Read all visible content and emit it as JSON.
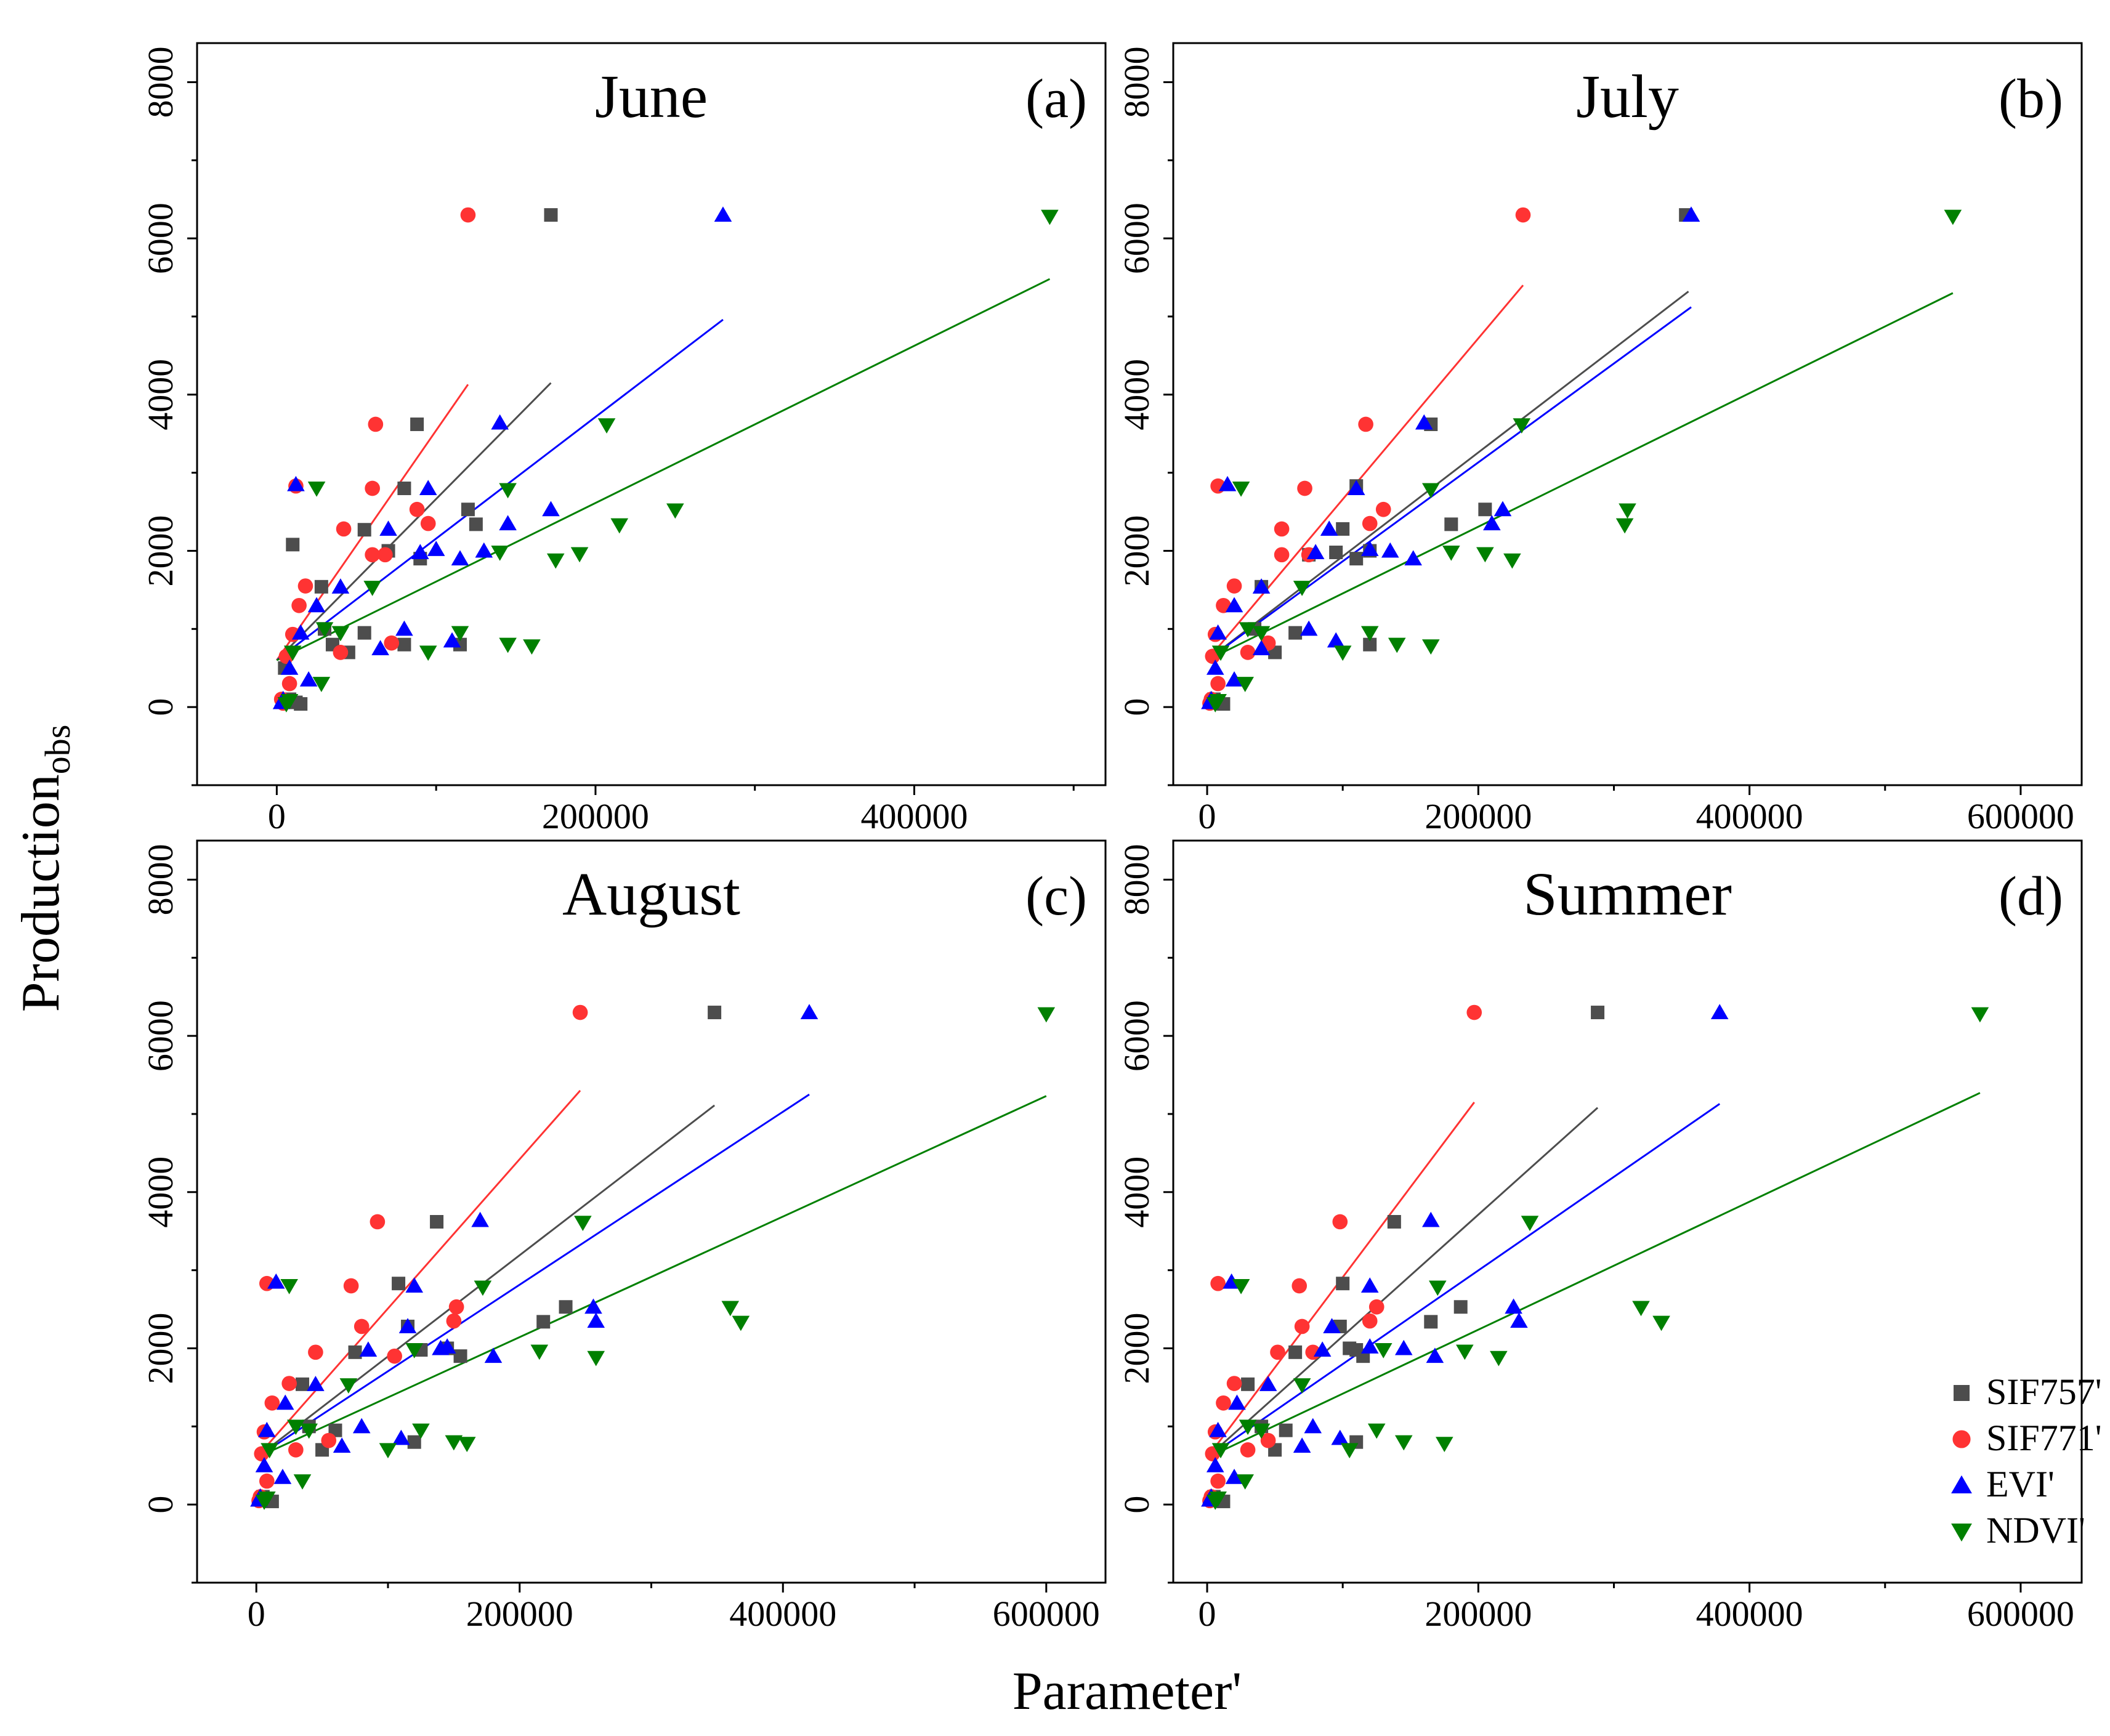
{
  "figure": {
    "xlabel": "Parameter'",
    "ylabel_main": "Production",
    "ylabel_sub": "obs"
  },
  "legend": [
    {
      "label": "SIF757'",
      "marker": "square",
      "color": "#4d4d4d"
    },
    {
      "label": "SIF771'",
      "marker": "circle",
      "color": "#ff3333"
    },
    {
      "label": "EVI'",
      "marker": "triangle-up",
      "color": "#0000ff"
    },
    {
      "label": "NDVI'",
      "marker": "triangle-down",
      "color": "#008000"
    }
  ],
  "chart_data": [
    {
      "type": "scatter",
      "title": "June",
      "panel_label": "(a)",
      "xlim": [
        -50000,
        520000
      ],
      "ylim": [
        -1000,
        8500
      ],
      "xticks": [
        0,
        200000,
        400000
      ],
      "yticks": [
        0,
        2000,
        4000,
        6000,
        8000
      ],
      "series": [
        {
          "name": "SIF757'",
          "marker": "square",
          "color": "#4d4d4d",
          "x": [
            172000,
            88000,
            120000,
            10000,
            80000,
            125000,
            28000,
            55000,
            70000,
            90000,
            30000,
            35000,
            55000,
            80000,
            115000,
            45000,
            5000,
            8000,
            12000,
            15000
          ],
          "y": [
            6300,
            3620,
            2530,
            2080,
            2800,
            2340,
            1540,
            2270,
            2000,
            1900,
            1000,
            800,
            950,
            800,
            800,
            700,
            500,
            100,
            60,
            40
          ],
          "fit": {
            "x0": 0,
            "x1": 172000,
            "y0": 600,
            "y1": 4150
          }
        },
        {
          "name": "SIF771'",
          "marker": "circle",
          "color": "#ff3333",
          "x": [
            120000,
            62000,
            12000,
            60000,
            42000,
            95000,
            68000,
            88000,
            60000,
            18000,
            14000,
            10000,
            6000,
            8000,
            40000,
            72000,
            3000,
            4000
          ],
          "y": [
            6300,
            3620,
            2830,
            2800,
            2280,
            2350,
            1950,
            2530,
            1950,
            1550,
            1300,
            930,
            650,
            300,
            700,
            820,
            100,
            50
          ],
          "fit": {
            "x0": 0,
            "x1": 120000,
            "y0": 600,
            "y1": 4130
          }
        },
        {
          "name": "EVI'",
          "marker": "triangle-up",
          "color": "#0000ff",
          "x": [
            280000,
            140000,
            12000,
            95000,
            70000,
            145000,
            172000,
            90000,
            100000,
            130000,
            115000,
            40000,
            25000,
            15000,
            80000,
            110000,
            65000,
            20000,
            4000,
            3000,
            8000
          ],
          "y": [
            6300,
            3640,
            2850,
            2800,
            2280,
            2350,
            2530,
            1980,
            2020,
            2000,
            1900,
            1540,
            1300,
            950,
            1000,
            850,
            750,
            350,
            100,
            60,
            500
          ],
          "fit": {
            "x0": 0,
            "x1": 280000,
            "y0": 600,
            "y1": 4960
          }
        },
        {
          "name": "NDVI'",
          "marker": "triangle-down",
          "color": "#008000",
          "x": [
            485000,
            207000,
            25000,
            145000,
            215000,
            250000,
            140000,
            175000,
            190000,
            60000,
            30000,
            115000,
            95000,
            145000,
            160000,
            40000,
            28000,
            8000,
            10000,
            6000
          ],
          "y": [
            6280,
            3610,
            2800,
            2780,
            2330,
            2520,
            1980,
            1880,
            1960,
            1530,
            1000,
            950,
            700,
            800,
            780,
            950,
            300,
            80,
            700,
            40
          ],
          "fit": {
            "x0": 0,
            "x1": 485000,
            "y0": 600,
            "y1": 5480
          }
        }
      ]
    },
    {
      "type": "scatter",
      "title": "July",
      "panel_label": "(b)",
      "xlim": [
        -25000,
        645000
      ],
      "ylim": [
        -1000,
        8500
      ],
      "xticks": [
        0,
        200000,
        400000,
        600000
      ],
      "yticks": [
        0,
        2000,
        4000,
        6000,
        8000
      ],
      "series": [
        {
          "name": "SIF757'",
          "marker": "square",
          "color": "#4d4d4d",
          "x": [
            353000,
            165000,
            205000,
            110000,
            100000,
            180000,
            40000,
            75000,
            95000,
            120000,
            110000,
            35000,
            65000,
            50000,
            120000,
            5000,
            8000,
            12000
          ],
          "y": [
            6300,
            3620,
            2530,
            2830,
            2280,
            2340,
            1540,
            1950,
            1980,
            2000,
            1900,
            1000,
            950,
            700,
            800,
            100,
            60,
            40
          ],
          "fit": {
            "x0": 0,
            "x1": 355000,
            "y0": 600,
            "y1": 5320
          }
        },
        {
          "name": "SIF771'",
          "marker": "circle",
          "color": "#ff3333",
          "x": [
            233000,
            117000,
            8000,
            72000,
            55000,
            120000,
            130000,
            75000,
            55000,
            20000,
            12000,
            6000,
            4000,
            8000,
            30000,
            45000,
            3000,
            2000
          ],
          "y": [
            6300,
            3620,
            2830,
            2800,
            2280,
            2350,
            2530,
            1950,
            1950,
            1550,
            1300,
            930,
            650,
            300,
            700,
            820,
            100,
            50
          ],
          "fit": {
            "x0": 0,
            "x1": 233000,
            "y0": 600,
            "y1": 5400
          }
        },
        {
          "name": "EVI'",
          "marker": "triangle-up",
          "color": "#0000ff",
          "x": [
            357000,
            160000,
            15000,
            110000,
            90000,
            210000,
            218000,
            80000,
            120000,
            135000,
            152000,
            40000,
            20000,
            8000,
            75000,
            95000,
            40000,
            20000,
            3000,
            2000,
            6000
          ],
          "y": [
            6300,
            3640,
            2850,
            2800,
            2280,
            2350,
            2530,
            1980,
            2020,
            2000,
            1900,
            1540,
            1300,
            950,
            1000,
            850,
            750,
            350,
            100,
            60,
            500
          ],
          "fit": {
            "x0": 0,
            "x1": 357000,
            "y0": 600,
            "y1": 5120
          }
        },
        {
          "name": "NDVI'",
          "marker": "triangle-down",
          "color": "#008000",
          "x": [
            550000,
            232000,
            25000,
            165000,
            308000,
            310000,
            180000,
            205000,
            225000,
            70000,
            30000,
            120000,
            100000,
            140000,
            165000,
            40000,
            28000,
            8000,
            10000,
            6000
          ],
          "y": [
            6280,
            3610,
            2800,
            2780,
            2330,
            2520,
            1980,
            1960,
            1880,
            1530,
            1000,
            950,
            700,
            800,
            780,
            950,
            300,
            80,
            700,
            40
          ],
          "fit": {
            "x0": 0,
            "x1": 550000,
            "y0": 600,
            "y1": 5300
          }
        }
      ]
    },
    {
      "type": "scatter",
      "title": "August",
      "panel_label": "(c)",
      "xlim": [
        -45000,
        645000
      ],
      "ylim": [
        -1000,
        8500
      ],
      "xticks": [
        0,
        200000,
        400000,
        600000
      ],
      "yticks": [
        0,
        2000,
        4000,
        6000,
        8000
      ],
      "series": [
        {
          "name": "SIF757'",
          "marker": "square",
          "color": "#4d4d4d",
          "x": [
            348000,
            137000,
            235000,
            108000,
            115000,
            218000,
            35000,
            75000,
            125000,
            155000,
            145000,
            40000,
            60000,
            50000,
            120000,
            5000,
            8000,
            12000
          ],
          "y": [
            6300,
            3620,
            2530,
            2830,
            2280,
            2340,
            1540,
            1950,
            1980,
            1900,
            2000,
            1000,
            950,
            700,
            800,
            100,
            60,
            40
          ],
          "fit": {
            "x0": 0,
            "x1": 348000,
            "y0": 600,
            "y1": 5110
          }
        },
        {
          "name": "SIF771'",
          "marker": "circle",
          "color": "#ff3333",
          "x": [
            246000,
            92000,
            8000,
            72000,
            80000,
            150000,
            152000,
            45000,
            105000,
            25000,
            12000,
            6000,
            4000,
            8000,
            30000,
            55000,
            3000,
            2000
          ],
          "y": [
            6300,
            3620,
            2830,
            2800,
            2280,
            2350,
            2530,
            1950,
            1900,
            1550,
            1300,
            930,
            650,
            300,
            700,
            820,
            100,
            50
          ],
          "fit": {
            "x0": 0,
            "x1": 246000,
            "y0": 600,
            "y1": 5300
          }
        },
        {
          "name": "EVI'",
          "marker": "triangle-up",
          "color": "#0000ff",
          "x": [
            420000,
            170000,
            15000,
            120000,
            115000,
            258000,
            256000,
            85000,
            145000,
            140000,
            180000,
            45000,
            22000,
            8000,
            80000,
            110000,
            65000,
            20000,
            3000,
            2000,
            6000
          ],
          "y": [
            6300,
            3640,
            2850,
            2800,
            2280,
            2350,
            2530,
            1980,
            2020,
            2000,
            1900,
            1540,
            1300,
            950,
            1000,
            850,
            750,
            350,
            100,
            60,
            500
          ],
          "fit": {
            "x0": 0,
            "x1": 420000,
            "y0": 600,
            "y1": 5250
          }
        },
        {
          "name": "NDVI'",
          "marker": "triangle-down",
          "color": "#008000",
          "x": [
            600000,
            248000,
            25000,
            172000,
            368000,
            360000,
            120000,
            215000,
            258000,
            70000,
            30000,
            125000,
            100000,
            150000,
            160000,
            40000,
            35000,
            8000,
            10000,
            6000
          ],
          "y": [
            6280,
            3610,
            2800,
            2780,
            2330,
            2520,
            1980,
            1960,
            1880,
            1530,
            1000,
            950,
            700,
            800,
            780,
            950,
            300,
            80,
            700,
            40
          ],
          "fit": {
            "x0": 0,
            "x1": 600000,
            "y0": 600,
            "y1": 5230
          }
        }
      ]
    },
    {
      "type": "scatter",
      "title": "Summer",
      "panel_label": "(d)",
      "xlim": [
        -25000,
        645000
      ],
      "ylim": [
        -1000,
        8500
      ],
      "xticks": [
        0,
        200000,
        400000,
        600000
      ],
      "yticks": [
        0,
        2000,
        4000,
        6000,
        8000
      ],
      "series": [
        {
          "name": "SIF757'",
          "marker": "square",
          "color": "#4d4d4d",
          "x": [
            288000,
            138000,
            187000,
            100000,
            98000,
            165000,
            30000,
            65000,
            105000,
            110000,
            115000,
            40000,
            58000,
            50000,
            110000,
            5000,
            8000,
            12000
          ],
          "y": [
            6300,
            3620,
            2530,
            2830,
            2280,
            2340,
            1540,
            1950,
            2000,
            1980,
            1900,
            1000,
            950,
            700,
            800,
            100,
            60,
            40
          ],
          "fit": {
            "x0": 0,
            "x1": 288000,
            "y0": 600,
            "y1": 5080
          }
        },
        {
          "name": "SIF771'",
          "marker": "circle",
          "color": "#ff3333",
          "x": [
            197000,
            98000,
            8000,
            68000,
            70000,
            120000,
            125000,
            52000,
            78000,
            20000,
            12000,
            6000,
            4000,
            8000,
            30000,
            45000,
            3000,
            2000
          ],
          "y": [
            6300,
            3620,
            2830,
            2800,
            2280,
            2350,
            2530,
            1950,
            1950,
            1550,
            1300,
            930,
            650,
            300,
            700,
            820,
            100,
            50
          ],
          "fit": {
            "x0": 0,
            "x1": 197000,
            "y0": 600,
            "y1": 5150
          }
        },
        {
          "name": "EVI'",
          "marker": "triangle-up",
          "color": "#0000ff",
          "x": [
            378000,
            165000,
            18000,
            120000,
            92000,
            230000,
            226000,
            85000,
            120000,
            145000,
            168000,
            45000,
            22000,
            8000,
            78000,
            98000,
            70000,
            20000,
            3000,
            2000,
            6000
          ],
          "y": [
            6300,
            3640,
            2850,
            2800,
            2280,
            2350,
            2530,
            1980,
            2020,
            2000,
            1900,
            1540,
            1300,
            950,
            1000,
            850,
            750,
            350,
            100,
            60,
            500
          ],
          "fit": {
            "x0": 0,
            "x1": 378000,
            "y0": 600,
            "y1": 5130
          }
        },
        {
          "name": "NDVI'",
          "marker": "triangle-down",
          "color": "#008000",
          "x": [
            570000,
            238000,
            25000,
            170000,
            335000,
            320000,
            130000,
            190000,
            215000,
            70000,
            30000,
            125000,
            105000,
            145000,
            175000,
            40000,
            28000,
            8000,
            10000,
            6000
          ],
          "y": [
            6280,
            3610,
            2800,
            2780,
            2330,
            2520,
            1980,
            1960,
            1880,
            1530,
            1000,
            950,
            700,
            800,
            780,
            950,
            300,
            80,
            700,
            40
          ],
          "fit": {
            "x0": 0,
            "x1": 570000,
            "y0": 600,
            "y1": 5270
          }
        }
      ]
    }
  ]
}
